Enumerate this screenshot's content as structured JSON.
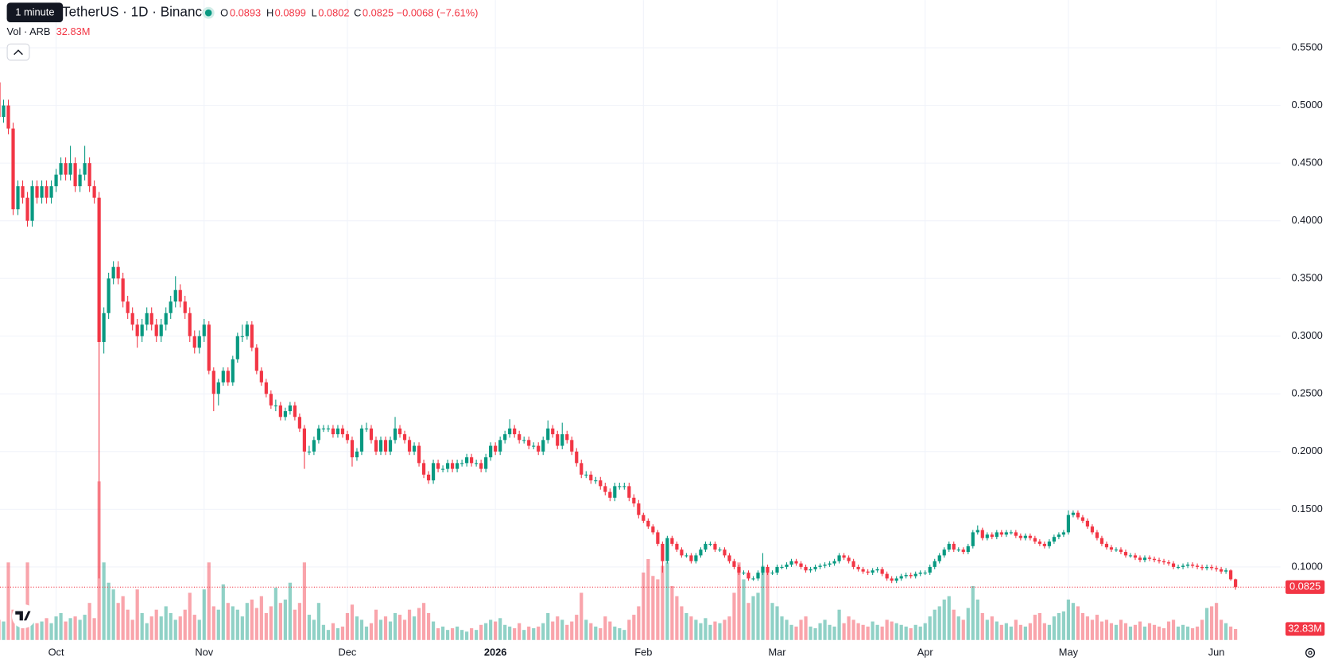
{
  "chart_data": {
    "type": "candlestick",
    "title": "TetherUS · 1D · Binance",
    "tooltip": "1 minute",
    "legend_keys": [
      "O",
      "H",
      "L",
      "C"
    ],
    "change_label": "−0.0068 (−7.61%)",
    "volume_title": "Vol · ARB",
    "volume_label": "32.83M",
    "up_color": "#089981",
    "down_color": "#f23645",
    "grid": true,
    "xlim": [
      0.25,
      268.4
    ],
    "ylim": [
      0.0366,
      0.5913
    ],
    "y2lim": [
      0,
      600
    ],
    "xticks": [
      {
        "value": 12,
        "label": "Oct"
      },
      {
        "value": 43,
        "label": "Nov"
      },
      {
        "value": 73,
        "label": "Dec"
      },
      {
        "value": 104,
        "label": "2026"
      },
      {
        "value": 135,
        "label": "Feb"
      },
      {
        "value": 163,
        "label": "Mar"
      },
      {
        "value": 194,
        "label": "Apr"
      },
      {
        "value": 224,
        "label": "May"
      },
      {
        "value": 255,
        "label": "Jun"
      }
    ],
    "yticks": [
      {
        "value": 0.1,
        "label": "0.1000"
      },
      {
        "value": 0.15,
        "label": "0.1500"
      },
      {
        "value": 0.2,
        "label": "0.2000"
      },
      {
        "value": 0.25,
        "label": "0.2500"
      },
      {
        "value": 0.3,
        "label": "0.3000"
      },
      {
        "value": 0.35,
        "label": "0.3500"
      },
      {
        "value": 0.4,
        "label": "0.4000"
      },
      {
        "value": 0.45,
        "label": "0.4500"
      },
      {
        "value": 0.5,
        "label": "0.5000"
      },
      {
        "value": 0.55,
        "label": "0.5500"
      }
    ],
    "open": [
      0.52,
      0.49,
      0.5,
      0.48,
      0.41,
      0.43,
      0.42,
      0.4,
      0.43,
      0.42,
      0.43,
      0.42,
      0.43,
      0.44,
      0.45,
      0.44,
      0.45,
      0.43,
      0.44,
      0.45,
      0.43,
      0.42,
      0.295,
      0.32,
      0.35,
      0.36,
      0.35,
      0.33,
      0.32,
      0.31,
      0.3,
      0.31,
      0.32,
      0.31,
      0.3,
      0.31,
      0.32,
      0.33,
      0.34,
      0.33,
      0.32,
      0.3,
      0.29,
      0.3,
      0.31,
      0.27,
      0.25,
      0.26,
      0.27,
      0.26,
      0.28,
      0.3,
      0.3,
      0.31,
      0.29,
      0.27,
      0.26,
      0.25,
      0.24,
      0.24,
      0.23,
      0.235,
      0.24,
      0.23,
      0.22,
      0.2,
      0.2,
      0.21,
      0.22,
      0.22,
      0.22,
      0.215,
      0.22,
      0.215,
      0.21,
      0.195,
      0.2,
      0.22,
      0.22,
      0.21,
      0.2,
      0.21,
      0.2,
      0.21,
      0.22,
      0.215,
      0.21,
      0.2,
      0.205,
      0.19,
      0.18,
      0.175,
      0.19,
      0.185,
      0.185,
      0.19,
      0.185,
      0.19,
      0.19,
      0.195,
      0.19,
      0.19,
      0.185,
      0.195,
      0.205,
      0.2,
      0.21,
      0.215,
      0.22,
      0.215,
      0.21,
      0.21,
      0.205,
      0.205,
      0.2,
      0.21,
      0.22,
      0.215,
      0.205,
      0.215,
      0.21,
      0.2,
      0.19,
      0.18,
      0.18,
      0.175,
      0.175,
      0.17,
      0.165,
      0.16,
      0.17,
      0.17,
      0.17,
      0.16,
      0.155,
      0.145,
      0.14,
      0.135,
      0.13,
      0.12,
      0.105,
      0.125,
      0.12,
      0.115,
      0.11,
      0.11,
      0.105,
      0.11,
      0.115,
      0.12,
      0.12,
      0.115,
      0.115,
      0.11,
      0.105,
      0.1,
      0.095,
      0.095,
      0.09,
      0.09,
      0.095,
      0.1,
      0.095,
      0.095,
      0.1,
      0.1,
      0.102,
      0.105,
      0.103,
      0.1,
      0.097,
      0.098,
      0.1,
      0.101,
      0.102,
      0.103,
      0.105,
      0.11,
      0.108,
      0.105,
      0.1,
      0.098,
      0.096,
      0.095,
      0.097,
      0.098,
      0.094,
      0.09,
      0.088,
      0.09,
      0.092,
      0.093,
      0.092,
      0.094,
      0.095,
      0.095,
      0.1,
      0.105,
      0.11,
      0.115,
      0.12,
      0.115,
      0.115,
      0.113,
      0.118,
      0.13,
      0.132,
      0.125,
      0.128,
      0.126,
      0.13,
      0.128,
      0.13,
      0.13,
      0.127,
      0.125,
      0.127,
      0.125,
      0.122,
      0.12,
      0.118,
      0.122,
      0.126,
      0.128,
      0.13,
      0.145,
      0.147,
      0.143,
      0.14,
      0.135,
      0.13,
      0.125,
      0.12,
      0.117,
      0.115,
      0.115,
      0.113,
      0.11,
      0.11,
      0.108,
      0.106,
      0.108,
      0.107,
      0.106,
      0.105,
      0.104,
      0.103,
      0.1,
      0.1,
      0.101,
      0.102,
      0.101,
      0.1,
      0.099,
      0.1,
      0.099,
      0.098,
      0.096,
      0.097,
      0.0893
    ],
    "high": [
      0.525,
      0.505,
      0.505,
      0.485,
      0.435,
      0.435,
      0.425,
      0.435,
      0.435,
      0.435,
      0.435,
      0.435,
      0.445,
      0.455,
      0.455,
      0.465,
      0.455,
      0.445,
      0.465,
      0.455,
      0.435,
      0.425,
      0.325,
      0.355,
      0.365,
      0.365,
      0.355,
      0.335,
      0.325,
      0.315,
      0.315,
      0.325,
      0.325,
      0.315,
      0.315,
      0.325,
      0.335,
      0.352,
      0.345,
      0.335,
      0.325,
      0.305,
      0.305,
      0.315,
      0.313,
      0.273,
      0.263,
      0.273,
      0.273,
      0.283,
      0.303,
      0.31,
      0.313,
      0.313,
      0.293,
      0.273,
      0.263,
      0.253,
      0.245,
      0.243,
      0.238,
      0.243,
      0.243,
      0.233,
      0.223,
      0.205,
      0.213,
      0.223,
      0.223,
      0.223,
      0.223,
      0.223,
      0.223,
      0.218,
      0.213,
      0.203,
      0.223,
      0.225,
      0.223,
      0.213,
      0.213,
      0.213,
      0.213,
      0.23,
      0.223,
      0.218,
      0.213,
      0.208,
      0.208,
      0.193,
      0.183,
      0.193,
      0.193,
      0.188,
      0.193,
      0.193,
      0.193,
      0.193,
      0.198,
      0.198,
      0.193,
      0.193,
      0.198,
      0.208,
      0.208,
      0.213,
      0.218,
      0.228,
      0.223,
      0.218,
      0.213,
      0.213,
      0.208,
      0.208,
      0.213,
      0.227,
      0.223,
      0.218,
      0.225,
      0.218,
      0.213,
      0.203,
      0.193,
      0.183,
      0.183,
      0.178,
      0.178,
      0.173,
      0.168,
      0.173,
      0.173,
      0.173,
      0.173,
      0.163,
      0.158,
      0.147,
      0.142,
      0.137,
      0.132,
      0.122,
      0.127,
      0.127,
      0.122,
      0.117,
      0.112,
      0.112,
      0.112,
      0.117,
      0.122,
      0.122,
      0.122,
      0.117,
      0.117,
      0.112,
      0.107,
      0.102,
      0.097,
      0.097,
      0.092,
      0.097,
      0.112,
      0.102,
      0.097,
      0.102,
      0.102,
      0.104,
      0.107,
      0.107,
      0.105,
      0.102,
      0.1,
      0.102,
      0.103,
      0.104,
      0.105,
      0.107,
      0.112,
      0.112,
      0.11,
      0.107,
      0.102,
      0.1,
      0.098,
      0.099,
      0.1,
      0.1,
      0.096,
      0.092,
      0.092,
      0.094,
      0.095,
      0.095,
      0.096,
      0.097,
      0.097,
      0.102,
      0.107,
      0.112,
      0.117,
      0.122,
      0.122,
      0.117,
      0.117,
      0.12,
      0.132,
      0.136,
      0.134,
      0.13,
      0.13,
      0.132,
      0.132,
      0.132,
      0.132,
      0.132,
      0.129,
      0.129,
      0.129,
      0.127,
      0.124,
      0.122,
      0.124,
      0.128,
      0.13,
      0.132,
      0.149,
      0.149,
      0.149,
      0.145,
      0.142,
      0.137,
      0.132,
      0.127,
      0.122,
      0.119,
      0.117,
      0.117,
      0.115,
      0.112,
      0.112,
      0.11,
      0.11,
      0.11,
      0.109,
      0.108,
      0.107,
      0.106,
      0.105,
      0.102,
      0.103,
      0.104,
      0.104,
      0.103,
      0.102,
      0.102,
      0.102,
      0.101,
      0.1,
      0.099,
      0.098,
      0.0899
    ],
    "low": [
      0.485,
      0.485,
      0.475,
      0.405,
      0.405,
      0.415,
      0.395,
      0.395,
      0.415,
      0.415,
      0.415,
      0.415,
      0.425,
      0.435,
      0.435,
      0.435,
      0.425,
      0.425,
      0.435,
      0.425,
      0.415,
      0.09,
      0.285,
      0.315,
      0.345,
      0.345,
      0.325,
      0.315,
      0.305,
      0.29,
      0.295,
      0.305,
      0.305,
      0.295,
      0.295,
      0.305,
      0.315,
      0.325,
      0.325,
      0.315,
      0.295,
      0.285,
      0.285,
      0.295,
      0.267,
      0.235,
      0.24,
      0.257,
      0.257,
      0.257,
      0.277,
      0.295,
      0.297,
      0.287,
      0.267,
      0.257,
      0.247,
      0.237,
      0.235,
      0.227,
      0.227,
      0.232,
      0.227,
      0.217,
      0.185,
      0.197,
      0.197,
      0.207,
      0.217,
      0.217,
      0.212,
      0.212,
      0.212,
      0.207,
      0.187,
      0.192,
      0.197,
      0.217,
      0.207,
      0.197,
      0.197,
      0.197,
      0.197,
      0.207,
      0.212,
      0.207,
      0.197,
      0.197,
      0.187,
      0.177,
      0.172,
      0.172,
      0.182,
      0.182,
      0.182,
      0.182,
      0.182,
      0.187,
      0.187,
      0.187,
      0.187,
      0.182,
      0.182,
      0.192,
      0.197,
      0.197,
      0.207,
      0.212,
      0.212,
      0.207,
      0.207,
      0.202,
      0.202,
      0.197,
      0.197,
      0.207,
      0.212,
      0.202,
      0.202,
      0.207,
      0.197,
      0.187,
      0.177,
      0.177,
      0.172,
      0.172,
      0.167,
      0.162,
      0.157,
      0.157,
      0.167,
      0.167,
      0.157,
      0.152,
      0.142,
      0.138,
      0.133,
      0.128,
      0.118,
      0.095,
      0.103,
      0.118,
      0.113,
      0.108,
      0.108,
      0.103,
      0.103,
      0.108,
      0.113,
      0.118,
      0.113,
      0.113,
      0.108,
      0.103,
      0.098,
      0.093,
      0.093,
      0.088,
      0.088,
      0.088,
      0.093,
      0.093,
      0.093,
      0.093,
      0.098,
      0.098,
      0.1,
      0.101,
      0.098,
      0.095,
      0.095,
      0.096,
      0.098,
      0.099,
      0.1,
      0.101,
      0.103,
      0.106,
      0.103,
      0.098,
      0.096,
      0.094,
      0.093,
      0.093,
      0.095,
      0.092,
      0.088,
      0.086,
      0.086,
      0.088,
      0.09,
      0.09,
      0.09,
      0.092,
      0.093,
      0.093,
      0.098,
      0.103,
      0.108,
      0.113,
      0.113,
      0.113,
      0.111,
      0.111,
      0.116,
      0.128,
      0.123,
      0.123,
      0.124,
      0.124,
      0.126,
      0.126,
      0.128,
      0.125,
      0.123,
      0.123,
      0.123,
      0.12,
      0.118,
      0.116,
      0.116,
      0.12,
      0.124,
      0.126,
      0.128,
      0.143,
      0.141,
      0.138,
      0.133,
      0.128,
      0.123,
      0.118,
      0.115,
      0.113,
      0.113,
      0.111,
      0.108,
      0.108,
      0.106,
      0.104,
      0.104,
      0.105,
      0.104,
      0.103,
      0.102,
      0.101,
      0.098,
      0.098,
      0.098,
      0.099,
      0.099,
      0.098,
      0.097,
      0.097,
      0.097,
      0.096,
      0.094,
      0.094,
      0.088,
      0.0802
    ],
    "close": [
      0.49,
      0.5,
      0.48,
      0.41,
      0.43,
      0.42,
      0.4,
      0.43,
      0.42,
      0.43,
      0.42,
      0.43,
      0.44,
      0.45,
      0.44,
      0.45,
      0.43,
      0.44,
      0.45,
      0.43,
      0.42,
      0.295,
      0.32,
      0.35,
      0.36,
      0.35,
      0.33,
      0.32,
      0.31,
      0.3,
      0.31,
      0.32,
      0.31,
      0.3,
      0.31,
      0.32,
      0.33,
      0.34,
      0.33,
      0.32,
      0.3,
      0.29,
      0.3,
      0.31,
      0.27,
      0.25,
      0.26,
      0.27,
      0.26,
      0.28,
      0.3,
      0.3,
      0.31,
      0.29,
      0.27,
      0.26,
      0.25,
      0.24,
      0.24,
      0.23,
      0.235,
      0.24,
      0.23,
      0.22,
      0.2,
      0.2,
      0.21,
      0.22,
      0.22,
      0.22,
      0.215,
      0.22,
      0.215,
      0.21,
      0.195,
      0.2,
      0.22,
      0.22,
      0.21,
      0.2,
      0.21,
      0.2,
      0.21,
      0.22,
      0.215,
      0.21,
      0.2,
      0.205,
      0.19,
      0.18,
      0.175,
      0.19,
      0.185,
      0.185,
      0.19,
      0.185,
      0.19,
      0.19,
      0.195,
      0.19,
      0.19,
      0.185,
      0.195,
      0.205,
      0.2,
      0.21,
      0.215,
      0.22,
      0.215,
      0.21,
      0.21,
      0.205,
      0.205,
      0.2,
      0.21,
      0.22,
      0.215,
      0.205,
      0.215,
      0.21,
      0.2,
      0.19,
      0.18,
      0.18,
      0.175,
      0.175,
      0.17,
      0.165,
      0.16,
      0.17,
      0.17,
      0.17,
      0.16,
      0.155,
      0.145,
      0.14,
      0.135,
      0.13,
      0.12,
      0.105,
      0.125,
      0.12,
      0.115,
      0.11,
      0.11,
      0.105,
      0.11,
      0.115,
      0.12,
      0.12,
      0.115,
      0.115,
      0.11,
      0.105,
      0.1,
      0.095,
      0.095,
      0.09,
      0.09,
      0.095,
      0.1,
      0.095,
      0.095,
      0.1,
      0.1,
      0.102,
      0.105,
      0.103,
      0.1,
      0.097,
      0.098,
      0.1,
      0.101,
      0.102,
      0.103,
      0.105,
      0.11,
      0.108,
      0.105,
      0.1,
      0.098,
      0.096,
      0.095,
      0.097,
      0.098,
      0.094,
      0.09,
      0.088,
      0.09,
      0.092,
      0.093,
      0.092,
      0.094,
      0.095,
      0.095,
      0.1,
      0.105,
      0.11,
      0.115,
      0.12,
      0.115,
      0.115,
      0.113,
      0.118,
      0.13,
      0.132,
      0.125,
      0.128,
      0.126,
      0.13,
      0.128,
      0.13,
      0.13,
      0.127,
      0.125,
      0.127,
      0.125,
      0.122,
      0.12,
      0.118,
      0.122,
      0.126,
      0.128,
      0.13,
      0.145,
      0.147,
      0.143,
      0.14,
      0.135,
      0.13,
      0.125,
      0.12,
      0.117,
      0.115,
      0.115,
      0.113,
      0.11,
      0.11,
      0.108,
      0.106,
      0.108,
      0.107,
      0.106,
      0.105,
      0.104,
      0.103,
      0.1,
      0.1,
      0.101,
      0.102,
      0.101,
      0.1,
      0.099,
      0.1,
      0.099,
      0.098,
      0.096,
      0.097,
      0.0893,
      0.0825
    ],
    "volume": [
      60,
      55,
      230,
      90,
      50,
      35,
      230,
      60,
      50,
      55,
      65,
      50,
      70,
      80,
      55,
      65,
      70,
      60,
      75,
      110,
      65,
      470,
      230,
      170,
      150,
      110,
      130,
      90,
      60,
      150,
      80,
      50,
      70,
      90,
      70,
      100,
      80,
      60,
      70,
      90,
      140,
      75,
      60,
      150,
      230,
      100,
      90,
      165,
      110,
      100,
      90,
      70,
      110,
      120,
      95,
      130,
      80,
      100,
      155,
      110,
      120,
      170,
      90,
      110,
      230,
      75,
      60,
      110,
      45,
      30,
      50,
      35,
      40,
      80,
      105,
      70,
      60,
      40,
      50,
      90,
      60,
      70,
      55,
      80,
      75,
      60,
      90,
      70,
      95,
      110,
      80,
      55,
      35,
      40,
      30,
      35,
      40,
      30,
      25,
      35,
      30,
      45,
      50,
      60,
      55,
      65,
      45,
      40,
      35,
      50,
      30,
      40,
      35,
      40,
      50,
      80,
      55,
      70,
      60,
      45,
      55,
      75,
      140,
      60,
      50,
      40,
      35,
      70,
      55,
      40,
      35,
      30,
      60,
      75,
      100,
      200,
      240,
      190,
      180,
      220,
      230,
      160,
      130,
      100,
      80,
      70,
      60,
      50,
      65,
      45,
      55,
      50,
      60,
      70,
      140,
      230,
      180,
      110,
      130,
      140,
      220,
      200,
      110,
      100,
      70,
      60,
      45,
      40,
      60,
      70,
      40,
      35,
      50,
      60,
      45,
      40,
      90,
      50,
      70,
      60,
      50,
      45,
      40,
      55,
      45,
      40,
      60,
      55,
      50,
      45,
      40,
      35,
      45,
      40,
      50,
      70,
      90,
      100,
      120,
      130,
      90,
      70,
      60,
      95,
      160,
      120,
      80,
      60,
      70,
      55,
      45,
      50,
      40,
      60,
      45,
      40,
      50,
      75,
      80,
      50,
      45,
      70,
      80,
      85,
      120,
      110,
      100,
      80,
      70,
      60,
      75,
      55,
      60,
      50,
      45,
      60,
      50,
      40,
      45,
      55,
      40,
      50,
      45,
      40,
      35,
      55,
      60,
      40,
      45,
      40,
      35,
      40,
      60,
      95,
      100,
      110,
      60,
      50,
      40,
      32.83
    ]
  }
}
